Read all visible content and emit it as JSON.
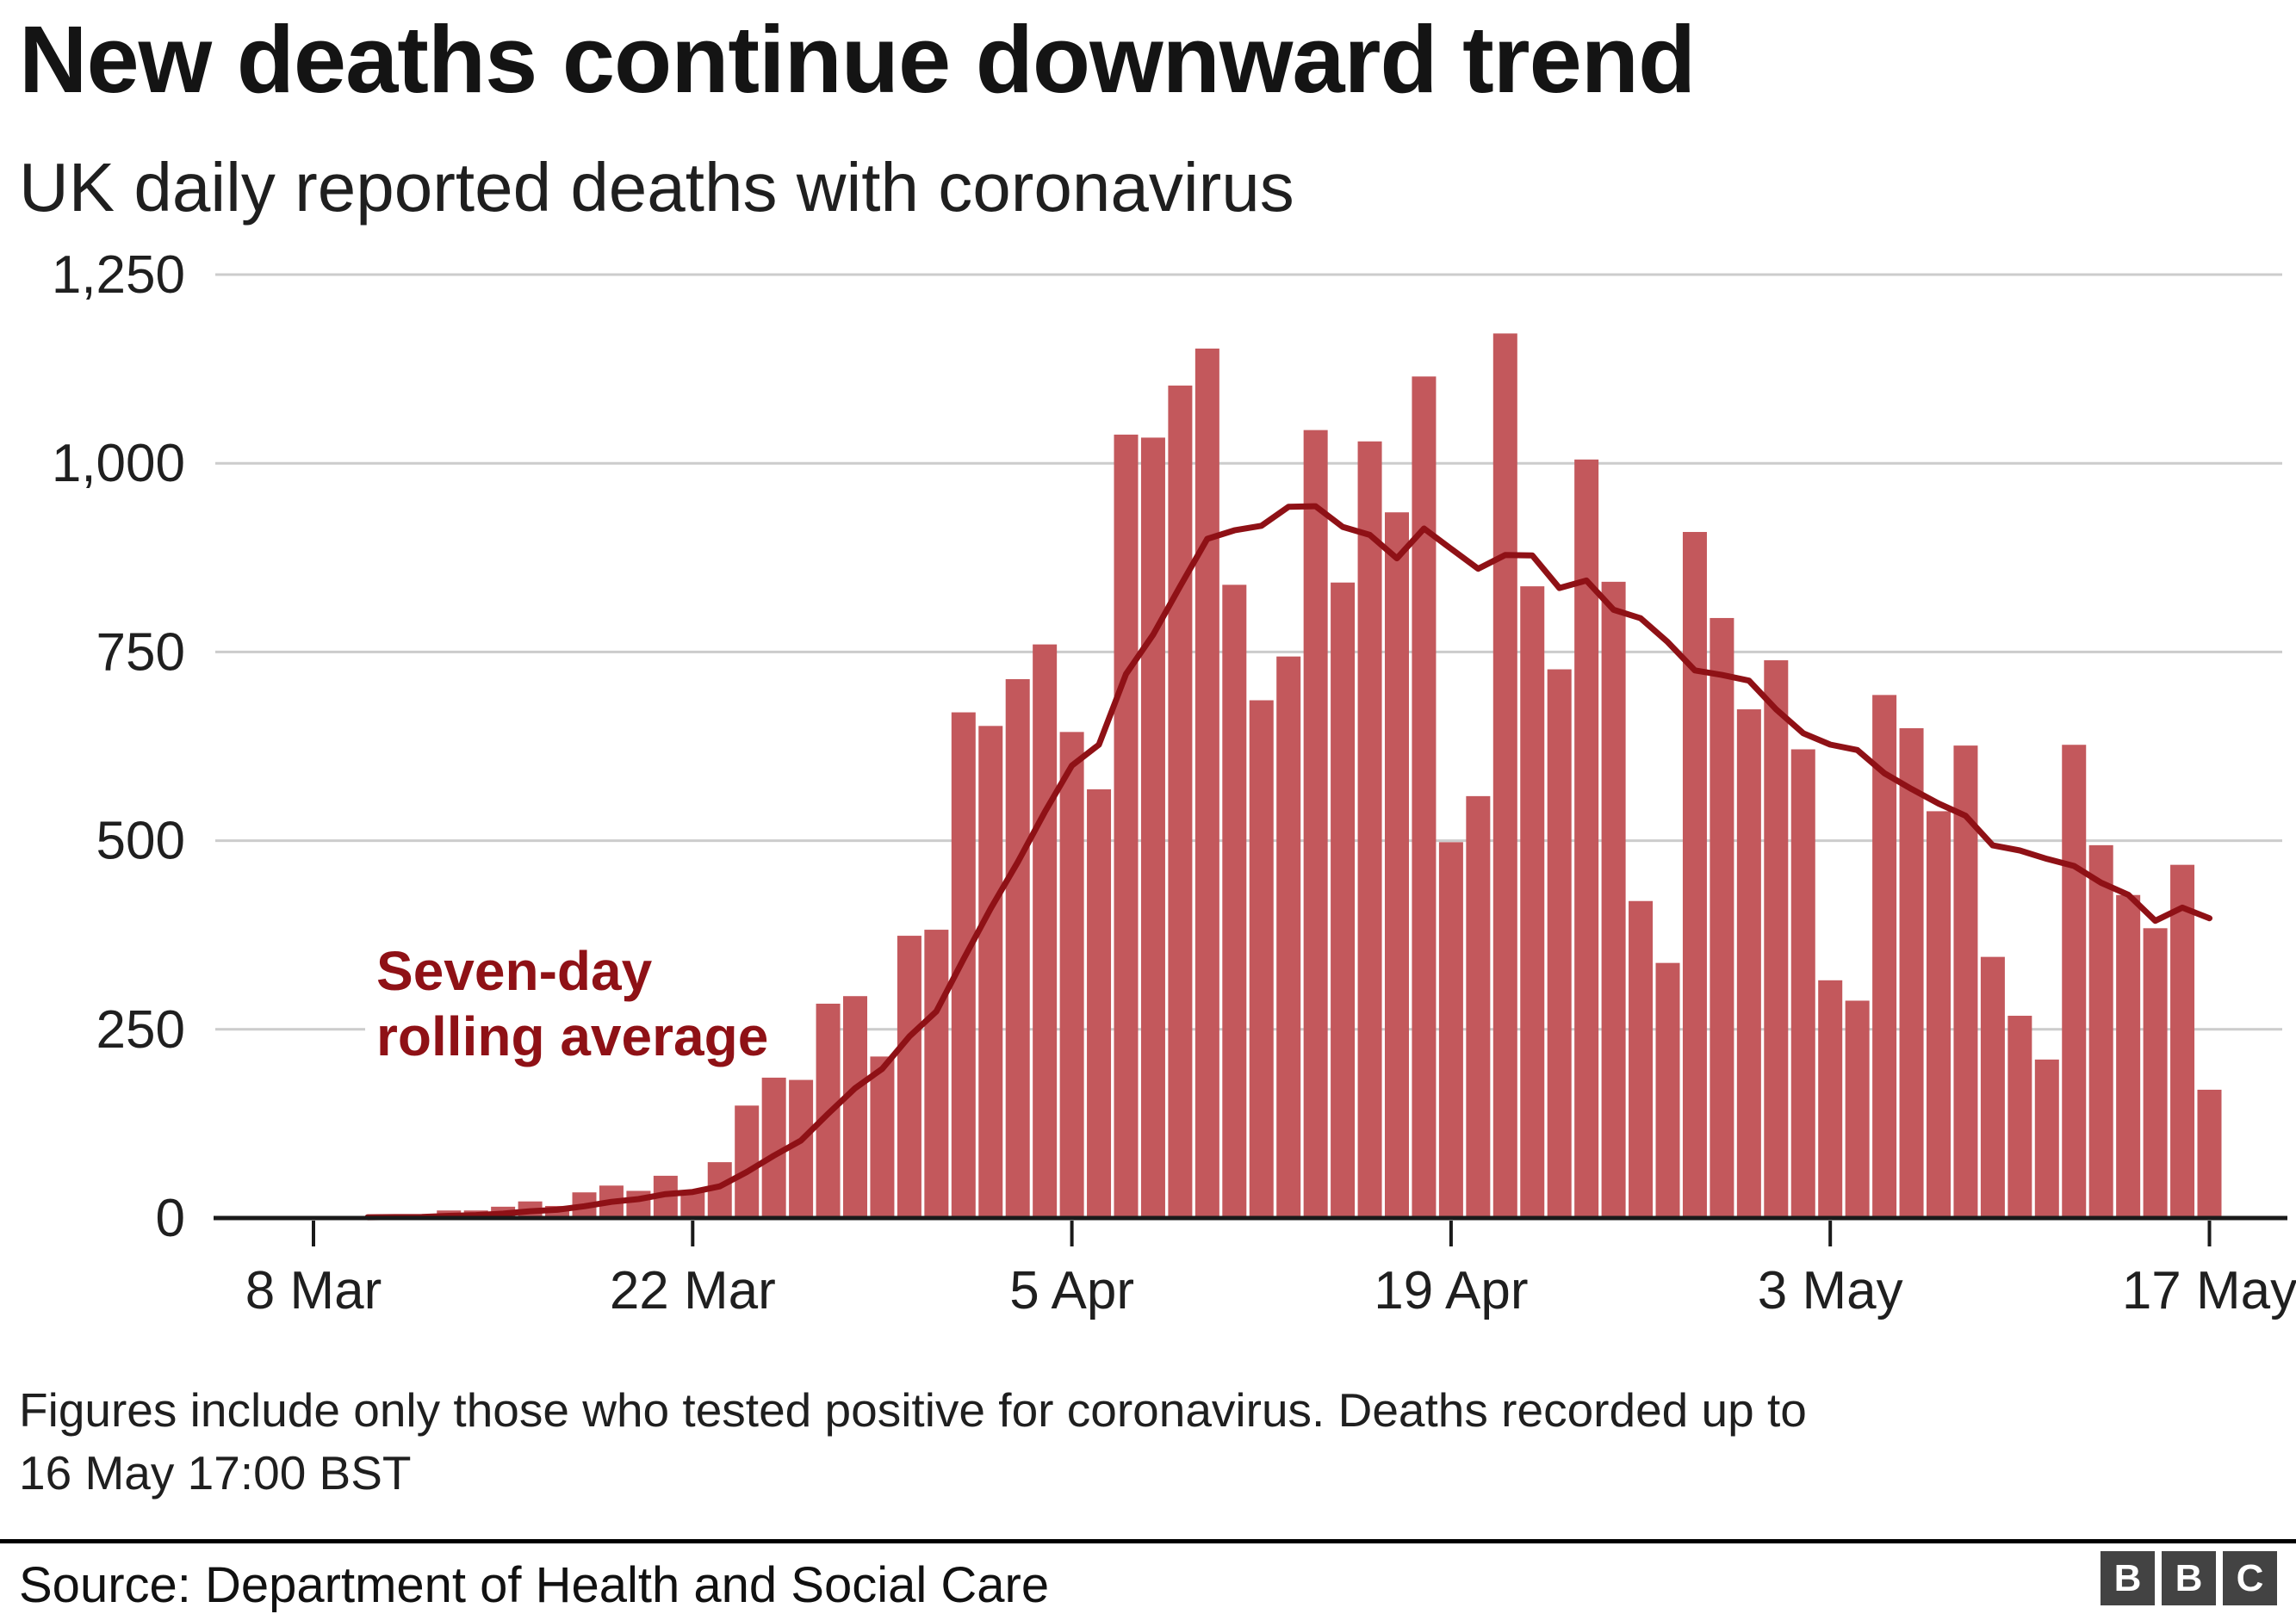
{
  "header": {
    "title": "New deaths continue downward trend",
    "subtitle": "UK daily reported deaths with coronavirus"
  },
  "chart_data": {
    "type": "bar",
    "title": "New deaths continue downward trend",
    "subtitle": "UK daily reported deaths with coronavirus",
    "xlabel": "",
    "ylabel": "",
    "ylim": [
      0,
      1250
    ],
    "grid": true,
    "legend_position": "annotation-on-plot",
    "categories": [
      "8 Mar",
      "9 Mar",
      "10 Mar",
      "11 Mar",
      "12 Mar",
      "13 Mar",
      "14 Mar",
      "15 Mar",
      "16 Mar",
      "17 Mar",
      "18 Mar",
      "19 Mar",
      "20 Mar",
      "21 Mar",
      "22 Mar",
      "23 Mar",
      "24 Mar",
      "25 Mar",
      "26 Mar",
      "27 Mar",
      "28 Mar",
      "29 Mar",
      "30 Mar",
      "31 Mar",
      "1 Apr",
      "2 Apr",
      "3 Apr",
      "4 Apr",
      "5 Apr",
      "6 Apr",
      "7 Apr",
      "8 Apr",
      "9 Apr",
      "10 Apr",
      "11 Apr",
      "12 Apr",
      "13 Apr",
      "14 Apr",
      "15 Apr",
      "16 Apr",
      "17 Apr",
      "18 Apr",
      "19 Apr",
      "20 Apr",
      "21 Apr",
      "22 Apr",
      "23 Apr",
      "24 Apr",
      "25 Apr",
      "26 Apr",
      "27 Apr",
      "28 Apr",
      "29 Apr",
      "30 Apr",
      "1 May",
      "2 May",
      "3 May",
      "4 May",
      "5 May",
      "6 May",
      "7 May",
      "8 May",
      "9 May",
      "10 May",
      "11 May",
      "12 May",
      "13 May",
      "14 May",
      "15 May",
      "16 May",
      "17 May"
    ],
    "values": [
      1,
      0,
      2,
      2,
      2,
      10,
      10,
      15,
      22,
      16,
      34,
      43,
      36,
      56,
      35,
      74,
      149,
      186,
      183,
      284,
      294,
      214,
      374,
      382,
      670,
      652,
      714,
      760,
      644,
      568,
      1038,
      1034,
      1103,
      1152,
      839,
      686,
      744,
      1044,
      842,
      1029,
      935,
      1115,
      498,
      559,
      1172,
      837,
      727,
      1005,
      843,
      420,
      338,
      909,
      795,
      674,
      739,
      621,
      315,
      288,
      693,
      649,
      539,
      626,
      346,
      268,
      210,
      627,
      494,
      428,
      384,
      468,
      170
    ],
    "rolling_average": {
      "window": 7,
      "label_line1": "Seven-day",
      "label_line2": "rolling average"
    },
    "y_ticks": [
      {
        "value": 0,
        "label": "0"
      },
      {
        "value": 250,
        "label": "250"
      },
      {
        "value": 500,
        "label": "500"
      },
      {
        "value": 750,
        "label": "750"
      },
      {
        "value": 1000,
        "label": "1,000"
      },
      {
        "value": 1250,
        "label": "1,250"
      }
    ],
    "x_ticks": [
      {
        "day_index": 0,
        "label": "8 Mar"
      },
      {
        "day_index": 14,
        "label": "22 Mar"
      },
      {
        "day_index": 28,
        "label": "5 Apr"
      },
      {
        "day_index": 42,
        "label": "19 Apr"
      },
      {
        "day_index": 56,
        "label": "3 May"
      },
      {
        "day_index": 70,
        "label": "17 May"
      }
    ],
    "colors": {
      "bar": "#c3585c",
      "line": "#8f1116",
      "annotation": "#8f1116",
      "grid": "#cccccc",
      "axis": "#1a1a1a"
    }
  },
  "footer": {
    "note_line1": "Figures include only those who tested positive for coronavirus. Deaths recorded up to",
    "note_line2": "16 May 17:00 BST",
    "source": "Source: Department of Health and Social Care",
    "logo_letters": [
      "B",
      "B",
      "C"
    ]
  }
}
